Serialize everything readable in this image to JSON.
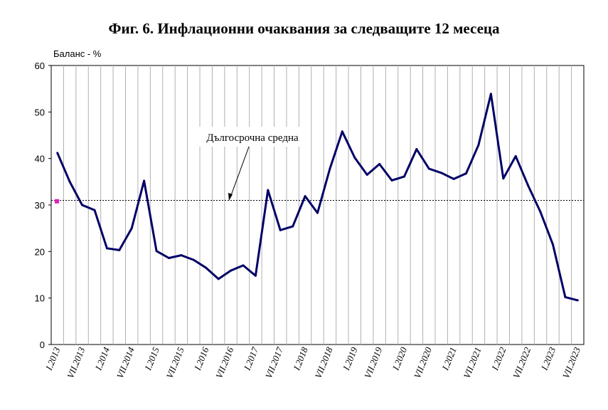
{
  "chart_data": {
    "type": "line",
    "title": "Фиг. 6. Инфлационни очаквания за следващите 12 месеца",
    "ylabel": "Баланс - %",
    "xlabel": "",
    "ylim": [
      0,
      60
    ],
    "yticks": [
      0,
      10,
      20,
      30,
      40,
      50,
      60
    ],
    "grid": "vertical",
    "x_labels": [
      "I.2013",
      "VII.2013",
      "I.2014",
      "VII.2014",
      "I.2015",
      "VII.2015",
      "I.2016",
      "VII.2016",
      "I.2017",
      "VII.2017",
      "I.2018",
      "VII.2018",
      "I.2019",
      "VII.2019",
      "I.2020",
      "VII.2020",
      "I.2021",
      "VII.2021",
      "I.2022",
      "VII.2022",
      "I.2023",
      "VII.2023"
    ],
    "series": [
      {
        "values": [
          41.2,
          35.0,
          30.0,
          28.9,
          20.7,
          20.3,
          25.0,
          35.2,
          20.1,
          18.6,
          19.2,
          18.2,
          16.5,
          14.1,
          15.9,
          17.0,
          14.8,
          33.2,
          24.6,
          25.4,
          31.9,
          28.3,
          37.8,
          45.8,
          40.2,
          36.5,
          38.8,
          35.3,
          36.1,
          42.0,
          37.8,
          36.9,
          35.6,
          36.8,
          42.9,
          53.9,
          35.7,
          40.5,
          34.2,
          28.5,
          21.5,
          10.2,
          9.5
        ],
        "color": "#000066"
      }
    ],
    "average": {
      "label": "Дългосрочна средна",
      "value": 31.0
    },
    "marker": {
      "value": 30.8,
      "color": "#e020c0"
    }
  }
}
